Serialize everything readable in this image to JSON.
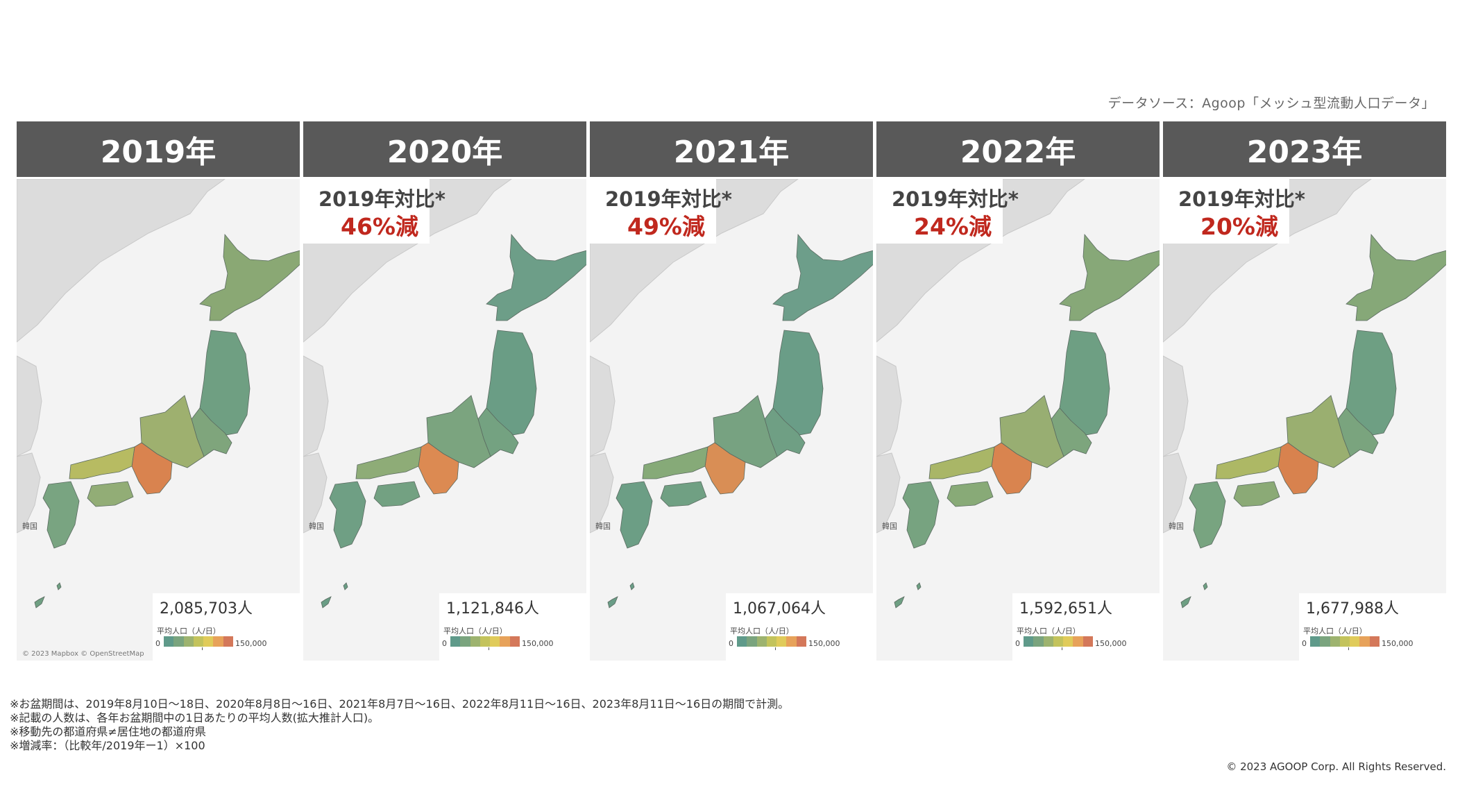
{
  "source_text": "データソース：Agoop「メッシュ型流動人口データ」",
  "panels": [
    {
      "year": "2019年",
      "compare_label": "",
      "compare_value": "",
      "total": "2,085,703人",
      "shades": {
        "hokkaido": "#8aa874",
        "tohoku": "#6f9f82",
        "kanto": "#7fa57c",
        "chubu": "#9eb06f",
        "kinki": "#d9834f",
        "chugoku": "#b7bb62",
        "shikoku": "#92ad76",
        "kyushu": "#79a481",
        "okinawa": "#6f9f82"
      }
    },
    {
      "year": "2020年",
      "compare_label": "2019年対比*",
      "compare_value": "46%減",
      "total": "1,121,846人",
      "shades": {
        "hokkaido": "#6d9e88",
        "tohoku": "#6a9d85",
        "kanto": "#74a281",
        "chubu": "#7ba47f",
        "kinki": "#dc8a52",
        "chugoku": "#8eac77",
        "shikoku": "#73a182",
        "kyushu": "#6f9f84",
        "okinawa": "#6a9d85"
      }
    },
    {
      "year": "2021年",
      "compare_label": "2019年対比*",
      "compare_value": "49%減",
      "total": "1,067,064人",
      "shades": {
        "hokkaido": "#6d9e8a",
        "tohoku": "#6a9d87",
        "kanto": "#6f9f84",
        "chubu": "#77a281",
        "kinki": "#d98e55",
        "chugoku": "#86aa78",
        "shikoku": "#70a083",
        "kyushu": "#6c9e85",
        "okinawa": "#6a9d87"
      }
    },
    {
      "year": "2022年",
      "compare_label": "2019年対比*",
      "compare_value": "24%減",
      "total": "1,592,651人",
      "shades": {
        "hokkaido": "#87a878",
        "tohoku": "#6e9f83",
        "kanto": "#7da57d",
        "chubu": "#98ae72",
        "kinki": "#d9844f",
        "chugoku": "#a9b667",
        "shikoku": "#88aa77",
        "kyushu": "#77a380",
        "okinawa": "#6e9f83"
      }
    },
    {
      "year": "2023年",
      "compare_label": "2019年対比*",
      "compare_value": "20%減",
      "total": "1,677,988人",
      "shades": {
        "hokkaido": "#86a878",
        "tohoku": "#6e9f83",
        "kanto": "#7aa47e",
        "chubu": "#9aaf70",
        "kinki": "#d8824e",
        "chugoku": "#adb865",
        "shikoku": "#8baa76",
        "kyushu": "#78a480",
        "okinawa": "#6e9f83"
      }
    }
  ],
  "legend": {
    "title": "平均人口（人/日）",
    "min": "0",
    "max": "150,000",
    "colors": [
      "#5f9a8a",
      "#7aa47e",
      "#9db36f",
      "#c3c35c",
      "#e0cb5a",
      "#e7a25a",
      "#d4785a"
    ]
  },
  "map_attribution": "© 2023 Mapbox © OpenStreetMap",
  "korea_label": "韓国",
  "notes": [
    "※お盆期間は、2019年8月10日～18日、2020年8月8日～16日、2021年8月7日～16日、2022年8月11日～16日、2023年8月11日～16日の期間で計測。",
    "※記載の人数は、各年お盆期間中の1日あたりの平均人数(拡大推計人口)。",
    "※移動先の都道府県≠居住地の都道府県",
    "※増減率：（比較年/2019年ー1）×100"
  ],
  "copyright": "© 2023 AGOOP Corp. All Rights Reserved."
}
